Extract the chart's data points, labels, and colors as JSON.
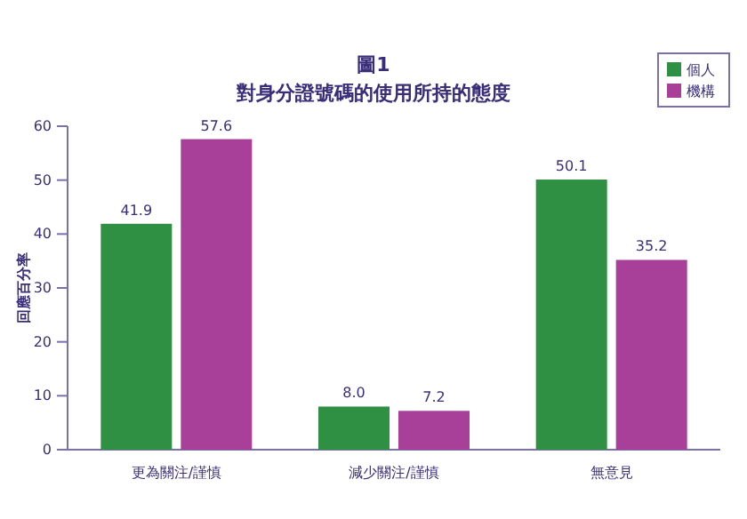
{
  "chart_data": {
    "type": "bar",
    "title": "圖1",
    "subtitle": "對身分證號碼的使用所持的態度",
    "ylabel": "回應百分率",
    "categories": [
      "更為關注/謹慎",
      "減少關注/謹慎",
      "無意見"
    ],
    "series": [
      {
        "name": "個人",
        "color": "#2f8f42",
        "values": [
          41.9,
          8.0,
          50.1
        ]
      },
      {
        "name": "機構",
        "color": "#a8409a",
        "values": [
          57.6,
          7.2,
          35.2
        ]
      }
    ],
    "value_labels": [
      [
        "41.9",
        "8.0",
        "50.1"
      ],
      [
        "57.6",
        "7.2",
        "35.2"
      ]
    ],
    "ylim": [
      0,
      60
    ],
    "yticks": [
      0,
      10,
      20,
      30,
      40,
      50,
      60
    ],
    "grid": false,
    "legend": "top right"
  }
}
